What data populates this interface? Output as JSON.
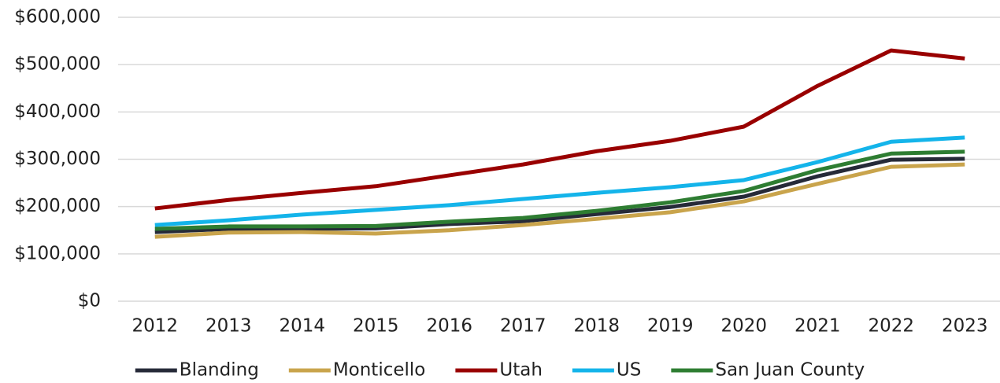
{
  "chart_data": {
    "type": "line",
    "categories": [
      "2012",
      "2013",
      "2014",
      "2015",
      "2016",
      "2017",
      "2018",
      "2019",
      "2020",
      "2021",
      "2022",
      "2023"
    ],
    "series": [
      {
        "name": "Blanding",
        "color": "#262a38",
        "values": [
          146000,
          153000,
          153000,
          154000,
          163000,
          169000,
          184000,
          199000,
          221000,
          264000,
          299000,
          301000
        ]
      },
      {
        "name": "Monticello",
        "color": "#c9a44c",
        "values": [
          136000,
          145000,
          146000,
          143000,
          150000,
          161000,
          174000,
          188000,
          211000,
          248000,
          284000,
          289000
        ]
      },
      {
        "name": "Utah",
        "color": "#990000",
        "values": [
          196000,
          214000,
          229000,
          243000,
          266000,
          289000,
          317000,
          339000,
          369000,
          455000,
          530000,
          513000
        ]
      },
      {
        "name": "US",
        "color": "#14b4ea",
        "values": [
          161000,
          171000,
          183000,
          193000,
          203000,
          216000,
          229000,
          241000,
          256000,
          294000,
          337000,
          346000
        ]
      },
      {
        "name": "San Juan County",
        "color": "#2e7d32",
        "values": [
          153000,
          158000,
          158000,
          159000,
          168000,
          176000,
          191000,
          209000,
          233000,
          277000,
          312000,
          316000
        ]
      }
    ],
    "ylim": [
      0,
      600000
    ],
    "yticks": [
      {
        "value": 0,
        "label": "$0"
      },
      {
        "value": 100000,
        "label": "$100,000"
      },
      {
        "value": 200000,
        "label": "$200,000"
      },
      {
        "value": 300000,
        "label": "$300,000"
      },
      {
        "value": 400000,
        "label": "$400,000"
      },
      {
        "value": 500000,
        "label": "$500,000"
      },
      {
        "value": 600000,
        "label": "$600,000"
      }
    ],
    "grid": true,
    "legend": "bottom"
  }
}
